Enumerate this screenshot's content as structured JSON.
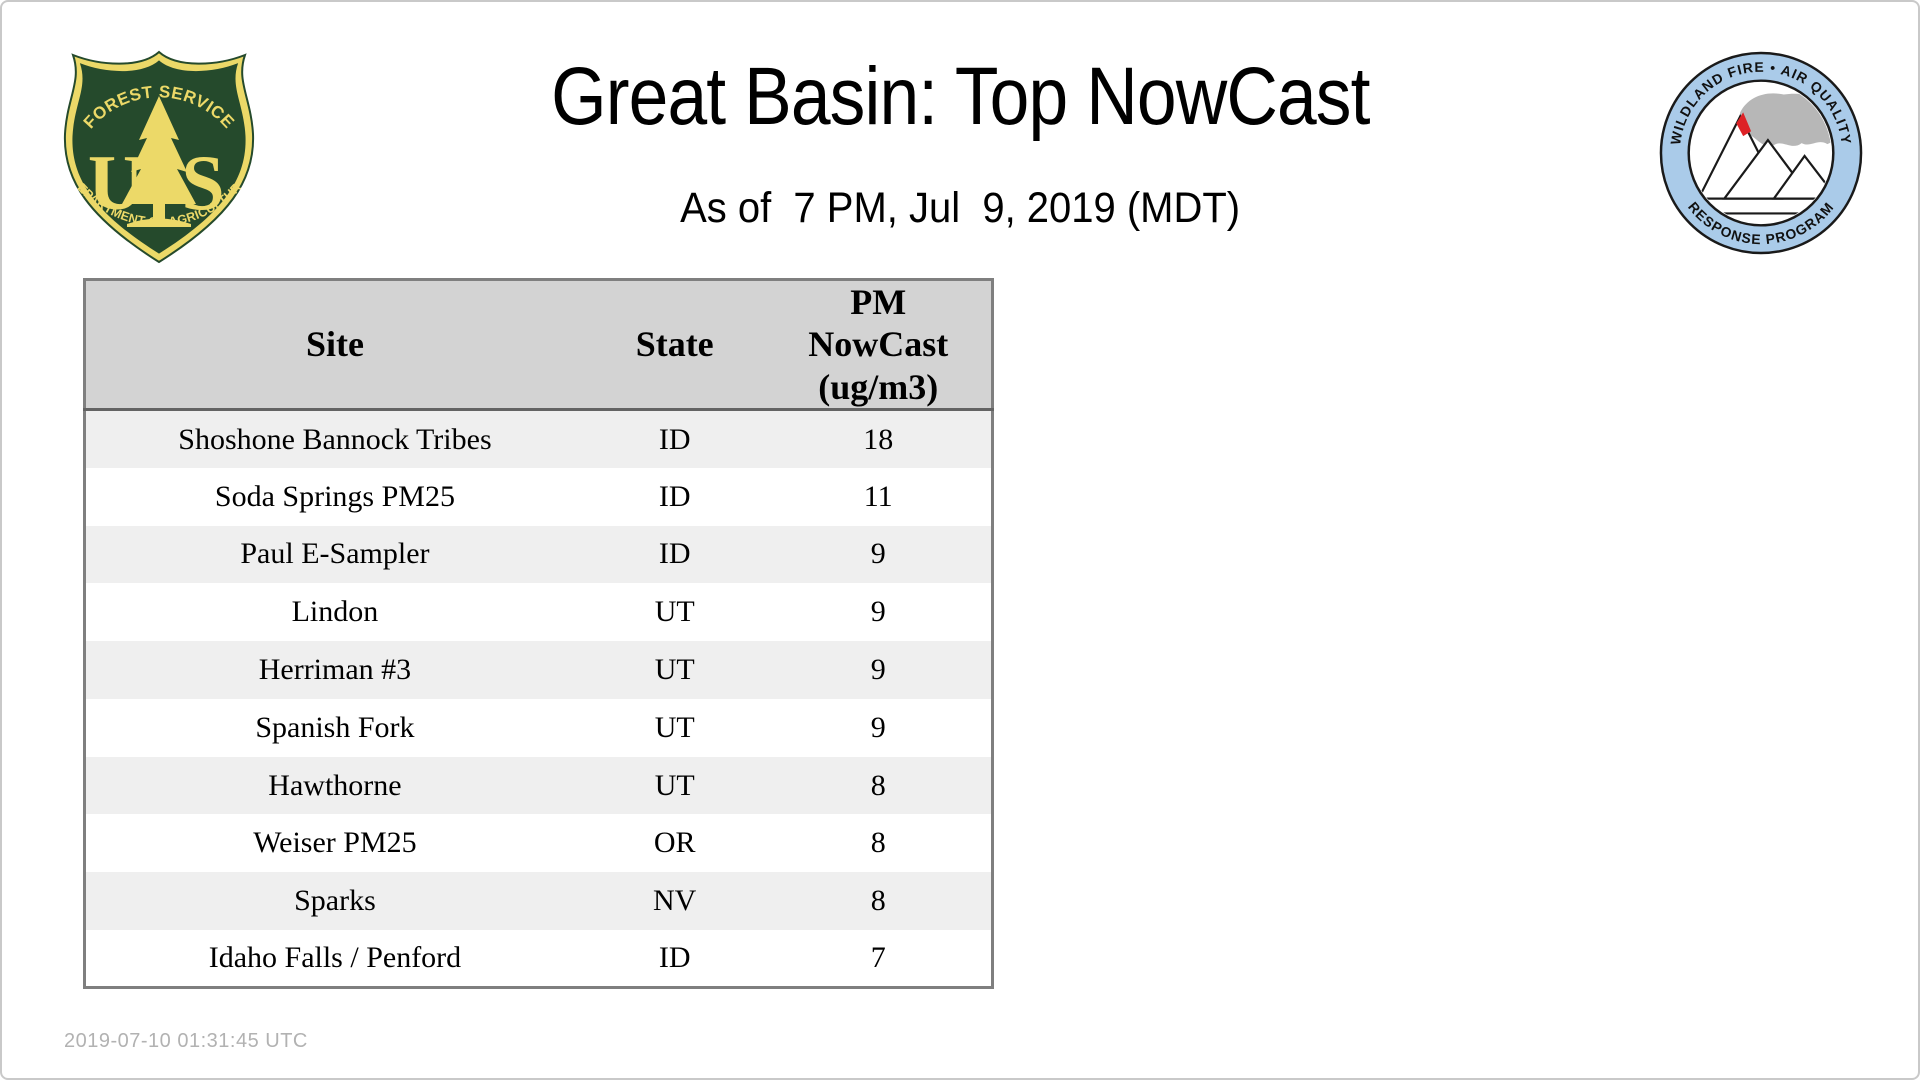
{
  "page": {
    "title": "Great Basin: Top NowCast",
    "subtitle": "As of  7 PM, Jul  9, 2019 (MDT)",
    "footer_timestamp": "2019-07-10 01:31:45 UTC"
  },
  "logos": {
    "forest_service": {
      "arc_top": "FOREST SERVICE",
      "letter_u": "U",
      "letter_s": "S",
      "arc_bottom": "DEPARTMENT OF AGRICULTURE",
      "colors": {
        "green": "#254a2c",
        "gold": "#ecd968"
      }
    },
    "wfaqrp": {
      "arc_top": "WILDLAND FIRE • AIR QUALITY",
      "arc_bottom": "RESPONSE PROGRAM",
      "colors": {
        "ring_blue": "#aacbe9",
        "smoke_gray": "#b7b7b7",
        "fire_red": "#dd2226"
      }
    }
  },
  "table": {
    "headers": {
      "site": "Site",
      "state": "State",
      "pm": "PM\nNowCast\n(ug/m3)"
    },
    "rows": [
      {
        "site": "Shoshone Bannock Tribes",
        "state": "ID",
        "value": "18"
      },
      {
        "site": "Soda Springs PM25",
        "state": "ID",
        "value": "11"
      },
      {
        "site": "Paul E-Sampler",
        "state": "ID",
        "value": "9"
      },
      {
        "site": "Lindon",
        "state": "UT",
        "value": "9"
      },
      {
        "site": "Herriman #3",
        "state": "UT",
        "value": "9"
      },
      {
        "site": "Spanish Fork",
        "state": "UT",
        "value": "9"
      },
      {
        "site": "Hawthorne",
        "state": "UT",
        "value": "8"
      },
      {
        "site": "Weiser PM25",
        "state": "OR",
        "value": "8"
      },
      {
        "site": "Sparks",
        "state": "NV",
        "value": "8"
      },
      {
        "site": "Idaho Falls / Penford",
        "state": "ID",
        "value": "7"
      }
    ]
  }
}
